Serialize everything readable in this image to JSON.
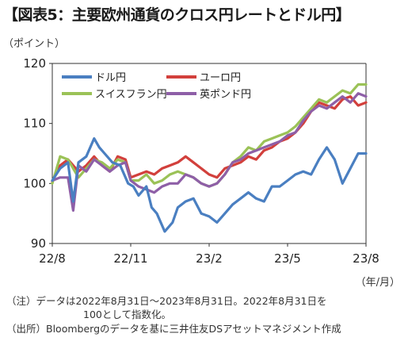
{
  "title": "【図表5：主要欧州通貨のクロス円レートとドル円】",
  "notes": {
    "note1": "（注）データは2022年8月31日〜2023年8月31日。2022年8月31日を",
    "note2": "100として指数化。",
    "note3": "（出所）Bloombergのデータを基に三井住友DSアセットマネジメント作成"
  },
  "chart_data": {
    "type": "line",
    "ylabel": "（ポイント）",
    "xlabel": "（年/月）",
    "ylim": [
      90,
      120
    ],
    "yticks": [
      90,
      100,
      110,
      120
    ],
    "xlim": [
      0,
      12
    ],
    "xticks": [
      {
        "pos": 0,
        "label": "22/8"
      },
      {
        "pos": 3,
        "label": "22/11"
      },
      {
        "pos": 6,
        "label": "23/2"
      },
      {
        "pos": 9,
        "label": "23/5"
      },
      {
        "pos": 12,
        "label": "23/8"
      }
    ],
    "grid": false,
    "legend": "top-left",
    "series": [
      {
        "name": "ドル円",
        "color": "#4a7fc1",
        "x": [
          0,
          0.3,
          0.6,
          0.8,
          1.0,
          1.3,
          1.6,
          1.8,
          2.0,
          2.3,
          2.6,
          2.9,
          3.1,
          3.3,
          3.6,
          3.8,
          4.0,
          4.3,
          4.6,
          4.8,
          5.1,
          5.4,
          5.7,
          6.0,
          6.3,
          6.6,
          6.9,
          7.2,
          7.5,
          7.8,
          8.1,
          8.4,
          8.7,
          9.0,
          9.3,
          9.6,
          9.9,
          10.2,
          10.5,
          10.8,
          11.1,
          11.4,
          11.7,
          12.0
        ],
        "y": [
          100.5,
          102.5,
          103.5,
          97.0,
          103.5,
          104.5,
          107.5,
          106.0,
          105.0,
          103.5,
          103.0,
          100.0,
          99.5,
          98.0,
          99.5,
          96.0,
          95.0,
          92.0,
          93.5,
          96.0,
          97.0,
          97.5,
          95.0,
          94.5,
          93.5,
          95.0,
          96.5,
          97.5,
          98.5,
          97.5,
          97.0,
          99.5,
          99.5,
          100.5,
          101.5,
          102.0,
          101.5,
          104.0,
          106.0,
          104.0,
          100.0,
          102.5,
          105.0,
          105.0
        ]
      },
      {
        "name": "ユーロ円",
        "color": "#d2403c",
        "x": [
          0,
          0.3,
          0.6,
          1.0,
          1.3,
          1.6,
          1.9,
          2.2,
          2.5,
          2.8,
          3.0,
          3.3,
          3.6,
          3.9,
          4.2,
          4.5,
          4.8,
          5.1,
          5.4,
          5.7,
          6.0,
          6.3,
          6.6,
          6.9,
          7.2,
          7.5,
          7.8,
          8.1,
          8.4,
          8.7,
          9.0,
          9.3,
          9.6,
          9.9,
          10.2,
          10.5,
          10.8,
          11.1,
          11.4,
          11.7,
          12.0
        ],
        "y": [
          100.3,
          103.0,
          104.0,
          102.0,
          103.0,
          104.5,
          103.0,
          102.0,
          104.5,
          104.0,
          101.0,
          101.5,
          102.0,
          101.5,
          102.5,
          103.0,
          103.5,
          104.5,
          103.5,
          102.5,
          101.5,
          101.0,
          102.5,
          103.0,
          103.5,
          104.5,
          104.0,
          105.5,
          106.0,
          107.0,
          107.5,
          108.5,
          110.0,
          112.0,
          113.5,
          113.0,
          112.5,
          114.0,
          114.5,
          113.0,
          113.5
        ]
      },
      {
        "name": "スイスフラン円",
        "color": "#9bc257",
        "x": [
          0,
          0.3,
          0.6,
          1.0,
          1.3,
          1.6,
          1.9,
          2.2,
          2.5,
          2.8,
          3.0,
          3.3,
          3.6,
          3.9,
          4.2,
          4.5,
          4.8,
          5.1,
          5.4,
          5.7,
          6.0,
          6.3,
          6.6,
          6.9,
          7.2,
          7.5,
          7.8,
          8.1,
          8.4,
          8.7,
          9.0,
          9.3,
          9.6,
          9.9,
          10.2,
          10.5,
          10.8,
          11.1,
          11.4,
          11.7,
          12.0
        ],
        "y": [
          100.0,
          104.5,
          104.0,
          101.0,
          102.5,
          104.0,
          103.5,
          102.5,
          104.0,
          103.5,
          100.5,
          100.5,
          101.5,
          100.0,
          100.5,
          101.5,
          102.0,
          101.5,
          101.0,
          100.0,
          99.5,
          100.0,
          101.5,
          103.5,
          104.5,
          106.0,
          105.5,
          107.0,
          107.5,
          108.0,
          108.5,
          109.5,
          111.0,
          112.5,
          114.0,
          113.5,
          114.5,
          115.5,
          115.0,
          116.5,
          116.5
        ]
      },
      {
        "name": "英ポンド円",
        "color": "#8e5fa7",
        "x": [
          0,
          0.3,
          0.6,
          0.8,
          1.0,
          1.3,
          1.6,
          1.9,
          2.2,
          2.5,
          2.8,
          3.0,
          3.3,
          3.6,
          3.9,
          4.2,
          4.5,
          4.8,
          5.1,
          5.4,
          5.7,
          6.0,
          6.3,
          6.6,
          6.9,
          7.2,
          7.5,
          7.8,
          8.1,
          8.4,
          8.7,
          9.0,
          9.3,
          9.6,
          9.9,
          10.2,
          10.5,
          10.8,
          11.1,
          11.4,
          11.7,
          12.0
        ],
        "y": [
          100.5,
          101.0,
          101.0,
          95.5,
          103.0,
          102.0,
          104.0,
          103.0,
          102.0,
          103.0,
          103.5,
          100.5,
          99.5,
          99.0,
          98.5,
          99.5,
          100.0,
          100.0,
          101.5,
          101.0,
          100.0,
          99.5,
          100.0,
          101.5,
          103.5,
          104.0,
          105.0,
          105.5,
          106.0,
          106.5,
          107.0,
          108.0,
          108.5,
          110.5,
          112.0,
          113.0,
          112.5,
          113.5,
          114.5,
          113.5,
          115.0,
          114.5
        ]
      }
    ]
  }
}
